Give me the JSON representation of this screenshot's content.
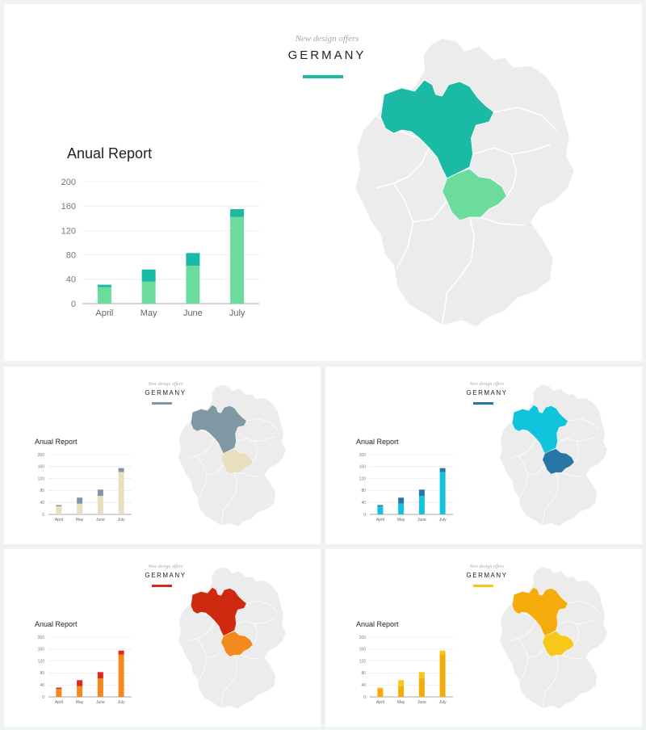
{
  "slides": [
    {
      "subtitle": "New design offers",
      "title": "GERMANY",
      "report_title": "Anual Report",
      "colors": {
        "bottom": "#6cdc9c",
        "top": "#1abaa5",
        "accent": "#1abaa5",
        "map_north": "#1abaa5",
        "map_south": "#6cdc9c"
      }
    },
    {
      "subtitle": "New design offers",
      "title": "GERMANY",
      "report_title": "Anual Report",
      "colors": {
        "bottom": "#e8dfbe",
        "top": "#7f98a3",
        "accent": "#7f98a3",
        "map_north": "#7f98a3",
        "map_south": "#e8dfbe"
      }
    },
    {
      "subtitle": "New design offers",
      "title": "GERMANY",
      "report_title": "Anual Report",
      "colors": {
        "bottom": "#11c3dc",
        "top": "#2876a5",
        "accent": "#2876a5",
        "map_north": "#11c3dc",
        "map_south": "#2876a5"
      }
    },
    {
      "subtitle": "New design offers",
      "title": "GERMANY",
      "report_title": "Anual Report",
      "colors": {
        "bottom": "#f28a1e",
        "top": "#dd2724",
        "accent": "#d22b1b",
        "map_north": "#cf2a10",
        "map_south": "#f28a1e"
      }
    },
    {
      "subtitle": "New design offers",
      "title": "GERMANY",
      "report_title": "Anual Report",
      "colors": {
        "bottom": "#f5ac0a",
        "top": "#f7c81a",
        "accent": "#f7c81a",
        "map_north": "#f5ac0a",
        "map_south": "#f7c81a"
      }
    }
  ],
  "chart_data": {
    "type": "bar",
    "stacked": true,
    "categories": [
      "April",
      "May",
      "June",
      "July"
    ],
    "series": [
      {
        "values": [
          27,
          36,
          62,
          142
        ]
      },
      {
        "values": [
          4,
          20,
          21,
          13
        ]
      }
    ],
    "ylim": [
      0,
      200
    ],
    "yticks": [
      0,
      40,
      80,
      120,
      160,
      200
    ],
    "grid": true
  }
}
